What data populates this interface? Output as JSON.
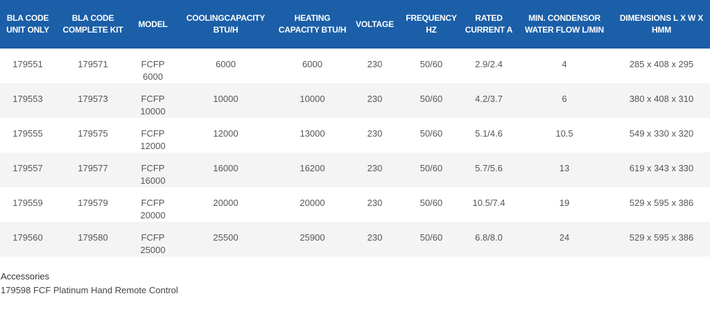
{
  "table": {
    "headers": [
      "BLA CODE UNIT ONLY",
      "BLA CODE COMPLETE KIT",
      "MODEL",
      "COOLINGCAPACITY BTU/H",
      "HEATING CAPACITY BTU/H",
      "VOLTAGE",
      "FREQUENCY HZ",
      "RATED CURRENT A",
      "MIN. CONDENSOR WATER FLOW L/MIN",
      "DIMENSIONS L X W X HMM"
    ],
    "rows": [
      {
        "unit": "179551",
        "kit": "179571",
        "model_line1": "FCFP",
        "model_line2": "6000",
        "cooling": "6000",
        "heating": "6000",
        "voltage": "230",
        "frequency": "50/60",
        "current": "2.9/2.4",
        "flow": "4",
        "dimensions": "285 x 408 x 295"
      },
      {
        "unit": "179553",
        "kit": "179573",
        "model_line1": "FCFP",
        "model_line2": "10000",
        "cooling": "10000",
        "heating": "10000",
        "voltage": "230",
        "frequency": "50/60",
        "current": "4.2/3.7",
        "flow": "6",
        "dimensions": "380 x 408 x 310"
      },
      {
        "unit": "179555",
        "kit": "179575",
        "model_line1": "FCFP",
        "model_line2": "12000",
        "cooling": "12000",
        "heating": "13000",
        "voltage": "230",
        "frequency": "50/60",
        "current": "5.1/4.6",
        "flow": "10.5",
        "dimensions": "549 x 330 x 320"
      },
      {
        "unit": "179557",
        "kit": "179577",
        "model_line1": "FCFP",
        "model_line2": "16000",
        "cooling": "16000",
        "heating": "16200",
        "voltage": "230",
        "frequency": "50/60",
        "current": "5.7/5.6",
        "flow": "13",
        "dimensions": "619 x 343 x 330"
      },
      {
        "unit": "179559",
        "kit": "179579",
        "model_line1": "FCFP",
        "model_line2": "20000",
        "cooling": "20000",
        "heating": "20000",
        "voltage": "230",
        "frequency": "50/60",
        "current": "10.5/7.4",
        "flow": "19",
        "dimensions": "529 x 595 x 386"
      },
      {
        "unit": "179560",
        "kit": "179580",
        "model_line1": "FCFP",
        "model_line2": "25000",
        "cooling": "25500",
        "heating": "25900",
        "voltage": "230",
        "frequency": "50/60",
        "current": "6.8/8.0",
        "flow": "24",
        "dimensions": "529 x 595 x 386"
      }
    ]
  },
  "accessories": {
    "title": "Accessories",
    "items": [
      "179598 FCF Platinum Hand Remote Control"
    ]
  },
  "colors": {
    "header_bg": "#1b5fa8",
    "header_text": "#ffffff",
    "row_alt_bg": "#f4f4f4"
  }
}
